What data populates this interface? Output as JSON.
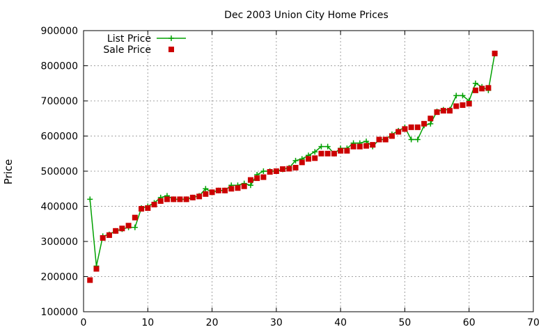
{
  "chart_data": {
    "type": "line",
    "title": "Dec 2003 Union City Home Prices",
    "xlabel": "",
    "ylabel": "Price",
    "xlim": [
      0,
      70
    ],
    "ylim": [
      100000,
      900000
    ],
    "xticks": [
      "0",
      "10",
      "20",
      "30",
      "40",
      "50",
      "60",
      "70"
    ],
    "yticks": [
      "100000",
      "200000",
      "300000",
      "400000",
      "500000",
      "600000",
      "700000",
      "800000",
      "900000"
    ],
    "grid": true,
    "legend_position": "top-left",
    "series": [
      {
        "name": "List Price",
        "style": "line-plus",
        "color": "#00a000",
        "x": [
          1,
          2,
          3,
          4,
          5,
          6,
          7,
          8,
          9,
          10,
          11,
          12,
          13,
          14,
          15,
          16,
          17,
          18,
          19,
          20,
          21,
          22,
          23,
          24,
          25,
          26,
          27,
          28,
          29,
          30,
          31,
          32,
          33,
          34,
          35,
          36,
          37,
          38,
          39,
          40,
          41,
          42,
          43,
          44,
          45,
          46,
          47,
          48,
          49,
          50,
          51,
          52,
          53,
          54,
          55,
          56,
          57,
          58,
          59,
          60,
          61,
          62,
          63,
          64
        ],
        "values": [
          420000,
          230000,
          315000,
          320000,
          330000,
          335000,
          340000,
          340000,
          395000,
          400000,
          410000,
          425000,
          430000,
          420000,
          420000,
          420000,
          425000,
          430000,
          450000,
          440000,
          445000,
          445000,
          460000,
          460000,
          465000,
          460000,
          490000,
          500000,
          500000,
          500000,
          505000,
          510000,
          530000,
          535000,
          545000,
          555000,
          570000,
          570000,
          550000,
          565000,
          565000,
          580000,
          580000,
          585000,
          570000,
          590000,
          590000,
          605000,
          615000,
          625000,
          590000,
          590000,
          630000,
          635000,
          670000,
          675000,
          675000,
          715000,
          715000,
          700000,
          750000,
          740000,
          730000,
          835000
        ]
      },
      {
        "name": "Sale Price",
        "style": "square-points",
        "color": "#cc0000",
        "x": [
          1,
          2,
          3,
          4,
          5,
          6,
          7,
          8,
          9,
          10,
          11,
          12,
          13,
          14,
          15,
          16,
          17,
          18,
          19,
          20,
          21,
          22,
          23,
          24,
          25,
          26,
          27,
          28,
          29,
          30,
          31,
          32,
          33,
          34,
          35,
          36,
          37,
          38,
          39,
          40,
          41,
          42,
          43,
          44,
          45,
          46,
          47,
          48,
          49,
          50,
          51,
          52,
          53,
          54,
          55,
          56,
          57,
          58,
          59,
          60,
          61,
          62,
          63,
          64
        ],
        "values": [
          190000,
          222000,
          310000,
          318000,
          330000,
          337000,
          345000,
          368000,
          393000,
          395000,
          405000,
          415000,
          420000,
          420000,
          420000,
          420000,
          425000,
          428000,
          435000,
          440000,
          445000,
          445000,
          450000,
          452000,
          457000,
          475000,
          480000,
          483000,
          498000,
          500000,
          506000,
          507000,
          510000,
          525000,
          535000,
          537000,
          550000,
          550000,
          550000,
          558000,
          558000,
          570000,
          570000,
          572000,
          575000,
          590000,
          590000,
          600000,
          612000,
          620000,
          625000,
          625000,
          635000,
          650000,
          668000,
          672000,
          672000,
          685000,
          688000,
          692000,
          730000,
          735000,
          737000,
          835000
        ]
      }
    ]
  }
}
